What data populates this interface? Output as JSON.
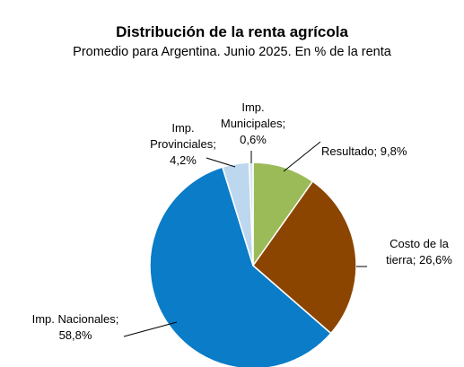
{
  "chart_data": {
    "type": "pie",
    "title": "Distribución de la renta agrícola",
    "subtitle": "Promedio para Argentina. Junio 2025. En % de la renta",
    "slices": [
      {
        "name": "Resultado",
        "value": 9.8,
        "color": "#9BBB59",
        "label": [
          "Resultado; 9,8%"
        ]
      },
      {
        "name": "Costo de la tierra",
        "value": 26.6,
        "color": "#8B4500",
        "label": [
          "Costo de la",
          "tierra; 26,6%"
        ]
      },
      {
        "name": "Imp. Nacionales",
        "value": 58.8,
        "color": "#0A7CC8",
        "label": [
          "Imp. Nacionales;",
          "58,8%"
        ]
      },
      {
        "name": "Imp. Provinciales",
        "value": 4.2,
        "color": "#BDD7EE",
        "label": [
          "Imp.",
          "Provinciales;",
          "4,2%"
        ]
      },
      {
        "name": "Imp. Municipales",
        "value": 0.6,
        "color": "#D9E6F2",
        "label": [
          "Imp.",
          "Municipales;",
          "0,6%"
        ]
      }
    ]
  }
}
